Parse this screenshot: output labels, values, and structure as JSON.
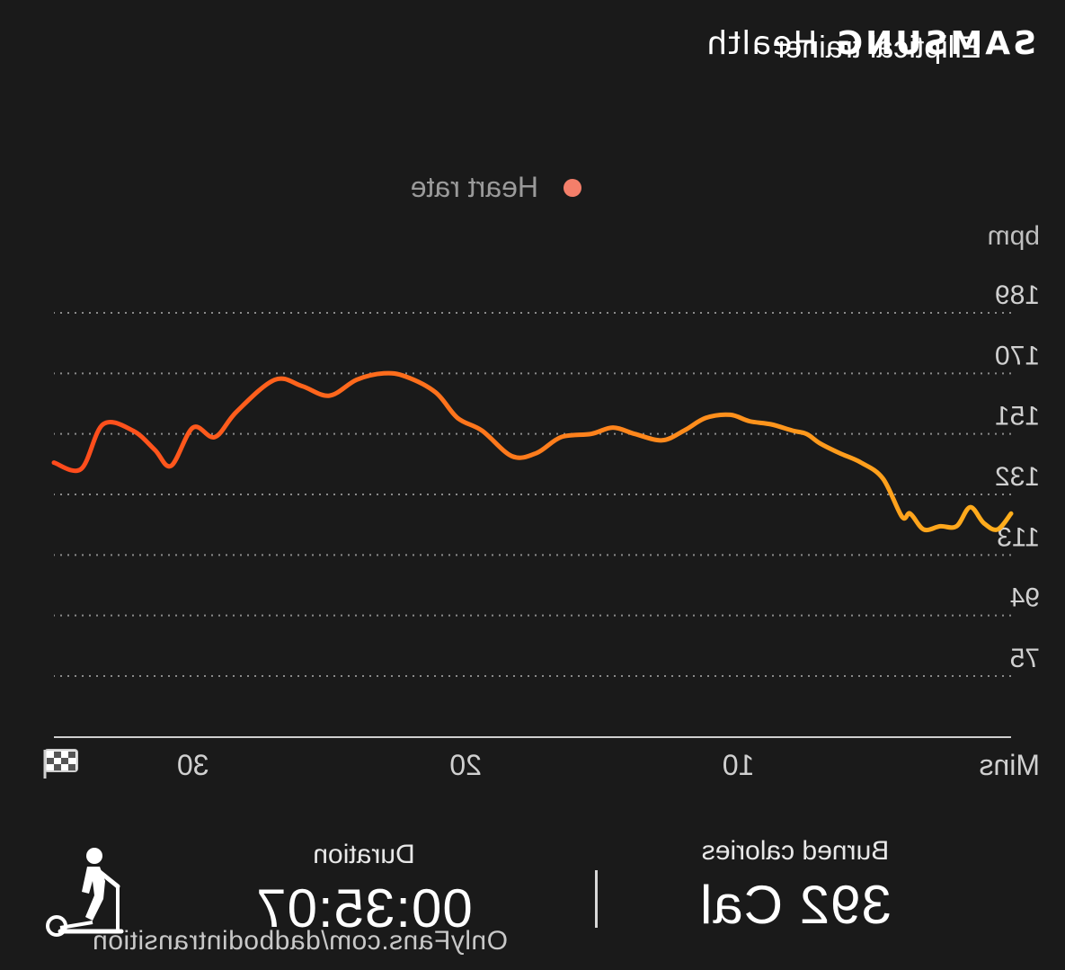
{
  "header": {
    "brand_samsung": "SAMSUNG",
    "brand_health": "Health",
    "workout_title": "Elliptical trainer"
  },
  "legend": {
    "label": "Heart rate",
    "color": "#f47f6a"
  },
  "chart_data": {
    "type": "line",
    "ylabel": "bpm",
    "xlabel": "Mins",
    "yticks": [
      189,
      170,
      151,
      132,
      113,
      94,
      75
    ],
    "ylim": [
      75,
      189
    ],
    "xticks": [
      10,
      20,
      30
    ],
    "xlim": [
      0,
      35.1
    ],
    "x_end_marker": "finish-flag-icon",
    "grid": true,
    "gridlines": "dotted",
    "legend_position": "top-center",
    "line_gradient": [
      "#ffae1c",
      "#ff4a1c"
    ],
    "series": [
      {
        "name": "Heart rate",
        "x": [
          0,
          0.5,
          1.0,
          1.5,
          2.0,
          2.6,
          3.2,
          3.7,
          4.0,
          4.7,
          5.5,
          6.3,
          7.0,
          7.5,
          8.0,
          8.8,
          9.6,
          10.3,
          11.2,
          12.0,
          12.8,
          13.8,
          14.6,
          15.4,
          16.5,
          17.4,
          18.3,
          19.4,
          20.3,
          21.1,
          22.2,
          23.0,
          24.0,
          25.0,
          26.0,
          27.0,
          28.4,
          29.2,
          30.0,
          30.8,
          31.4,
          32.2,
          33.3,
          34.1,
          35.1
        ],
        "y": [
          126,
          121,
          123,
          128,
          122,
          122,
          121,
          126,
          125,
          137,
          142,
          145,
          148,
          151,
          152,
          154,
          155,
          157,
          156,
          152,
          149,
          151,
          153,
          151,
          150,
          145,
          144,
          152,
          156,
          164,
          169,
          170,
          168,
          163,
          166,
          168,
          158,
          150,
          153,
          141,
          146,
          152,
          154,
          140,
          142
        ]
      }
    ]
  },
  "stats": {
    "calories_label": "Burned calories",
    "calories_value": "392 Cal",
    "duration_label": "Duration",
    "duration_value": "00:35:07",
    "activity_icon": "elliptical-trainer-icon"
  },
  "watermark": "OnlyFans.com/dadbodintransition"
}
